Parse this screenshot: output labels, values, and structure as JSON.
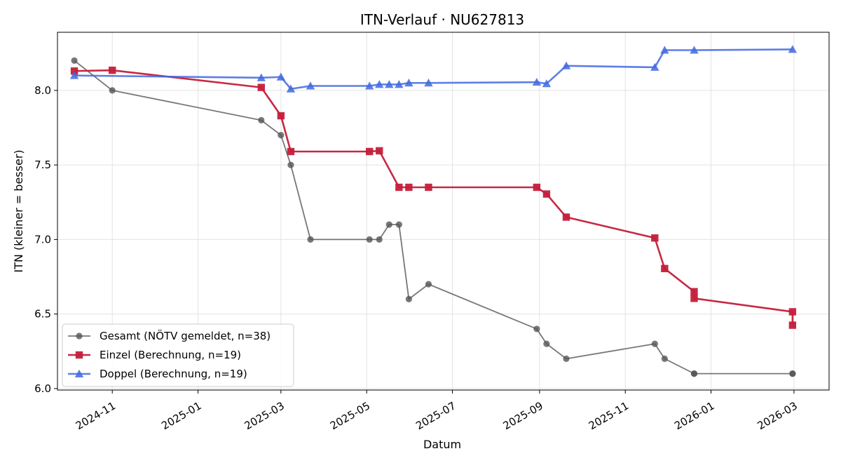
{
  "chart_data": {
    "type": "line",
    "title": "ITN-Verlauf · NU627813",
    "xlabel": "Datum",
    "ylabel": "ITN  (kleiner = besser)",
    "x_type": "date",
    "xlim": [
      "2024-09-23",
      "2026-03-26"
    ],
    "ylim": [
      5.99,
      8.39
    ],
    "x_ticks": [
      "2024-11-01",
      "2025-01-01",
      "2025-03-01",
      "2025-05-01",
      "2025-07-01",
      "2025-09-01",
      "2025-11-01",
      "2026-01-01",
      "2026-03-01"
    ],
    "x_tick_labels": [
      "2024-11",
      "2025-01",
      "2025-03",
      "2025-05",
      "2025-07",
      "2025-09",
      "2025-11",
      "2026-01",
      "2026-03"
    ],
    "y_ticks": [
      6.0,
      6.5,
      7.0,
      7.5,
      8.0
    ],
    "y_tick_labels": [
      "6.0",
      "6.5",
      "7.0",
      "7.5",
      "8.0"
    ],
    "grid": true,
    "legend_position": "lower-left",
    "series": [
      {
        "name": "Gesamt (NÖTV gemeldet, n=38)",
        "color": "#555555",
        "marker": "circle",
        "points": [
          [
            "2024-10-05",
            8.2
          ],
          [
            "2024-11-01",
            8.0
          ],
          [
            "2025-02-15",
            7.8
          ],
          [
            "2025-03-01",
            7.7
          ],
          [
            "2025-03-08",
            7.5
          ],
          [
            "2025-03-22",
            7.0
          ],
          [
            "2025-05-03",
            7.0
          ],
          [
            "2025-05-10",
            7.0
          ],
          [
            "2025-05-17",
            7.1
          ],
          [
            "2025-05-24",
            7.1
          ],
          [
            "2025-05-31",
            6.6
          ],
          [
            "2025-06-14",
            6.7
          ],
          [
            "2025-08-30",
            6.4
          ],
          [
            "2025-09-06",
            6.3
          ],
          [
            "2025-09-20",
            6.2
          ],
          [
            "2025-11-22",
            6.3
          ],
          [
            "2025-11-29",
            6.2
          ],
          [
            "2025-12-20",
            6.1
          ],
          [
            "2025-12-20",
            6.1
          ],
          [
            "2026-02-28",
            6.1
          ],
          [
            "2026-02-28",
            6.1
          ]
        ]
      },
      {
        "name": "Einzel (Berechnung, n=19)",
        "color": "#c41e3a",
        "marker": "square",
        "points": [
          [
            "2024-10-05",
            8.13
          ],
          [
            "2024-11-01",
            8.135
          ],
          [
            "2025-02-15",
            8.02
          ],
          [
            "2025-03-01",
            7.83
          ],
          [
            "2025-03-08",
            7.59
          ],
          [
            "2025-05-03",
            7.59
          ],
          [
            "2025-05-10",
            7.595
          ],
          [
            "2025-05-24",
            7.35
          ],
          [
            "2025-05-31",
            7.35
          ],
          [
            "2025-06-14",
            7.35
          ],
          [
            "2025-08-30",
            7.35
          ],
          [
            "2025-09-06",
            7.305
          ],
          [
            "2025-09-20",
            7.15
          ],
          [
            "2025-11-22",
            7.01
          ],
          [
            "2025-11-29",
            6.805
          ],
          [
            "2025-12-20",
            6.65
          ],
          [
            "2025-12-20",
            6.605
          ],
          [
            "2026-02-28",
            6.515
          ],
          [
            "2026-02-28",
            6.425
          ]
        ]
      },
      {
        "name": "Doppel (Berechnung, n=19)",
        "color": "#4169e1",
        "marker": "triangle",
        "points": [
          [
            "2024-10-05",
            8.1
          ],
          [
            "2025-02-15",
            8.085
          ],
          [
            "2025-03-01",
            8.09
          ],
          [
            "2025-03-08",
            8.01
          ],
          [
            "2025-03-22",
            8.03
          ],
          [
            "2025-05-03",
            8.03
          ],
          [
            "2025-05-10",
            8.04
          ],
          [
            "2025-05-17",
            8.04
          ],
          [
            "2025-05-24",
            8.04
          ],
          [
            "2025-05-31",
            8.05
          ],
          [
            "2025-06-14",
            8.05
          ],
          [
            "2025-08-30",
            8.055
          ],
          [
            "2025-09-06",
            8.045
          ],
          [
            "2025-09-20",
            8.165
          ],
          [
            "2025-11-22",
            8.155
          ],
          [
            "2025-11-29",
            8.27
          ],
          [
            "2025-12-20",
            8.27
          ],
          [
            "2026-02-28",
            8.275
          ]
        ]
      }
    ]
  }
}
